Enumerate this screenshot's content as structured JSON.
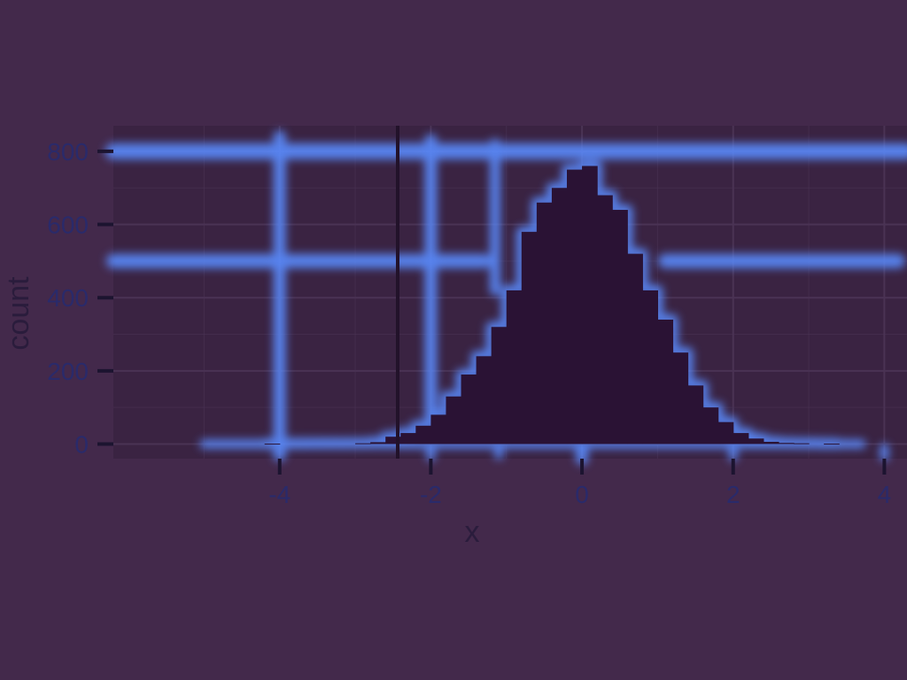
{
  "chart_data": {
    "type": "bar",
    "xlabel": "x",
    "ylabel": "count",
    "xlim": [
      -6.2,
      4.3
    ],
    "ylim": [
      -40,
      870
    ],
    "x_ticks": [
      -4,
      -2,
      0,
      2,
      4
    ],
    "y_ticks": [
      0,
      200,
      400,
      600,
      800
    ],
    "x_tick_labels": [
      "-4",
      "-2",
      "0",
      "2",
      "4"
    ],
    "y_tick_labels": [
      "0",
      "200",
      "400",
      "600",
      "800"
    ],
    "grid": true,
    "bin_width": 0.2,
    "bins": [
      {
        "x0": -4.2,
        "count": 1
      },
      {
        "x0": -3.0,
        "count": 2
      },
      {
        "x0": -2.8,
        "count": 5
      },
      {
        "x0": -2.6,
        "count": 20
      },
      {
        "x0": -2.4,
        "count": 30
      },
      {
        "x0": -2.2,
        "count": 50
      },
      {
        "x0": -2.0,
        "count": 80
      },
      {
        "x0": -1.8,
        "count": 130
      },
      {
        "x0": -1.6,
        "count": 190
      },
      {
        "x0": -1.4,
        "count": 240
      },
      {
        "x0": -1.2,
        "count": 320
      },
      {
        "x0": -1.0,
        "count": 420
      },
      {
        "x0": -0.8,
        "count": 580
      },
      {
        "x0": -0.6,
        "count": 660
      },
      {
        "x0": -0.4,
        "count": 700
      },
      {
        "x0": -0.2,
        "count": 750
      },
      {
        "x0": 0.0,
        "count": 760
      },
      {
        "x0": 0.2,
        "count": 680
      },
      {
        "x0": 0.4,
        "count": 640
      },
      {
        "x0": 0.6,
        "count": 520
      },
      {
        "x0": 0.8,
        "count": 420
      },
      {
        "x0": 1.0,
        "count": 340
      },
      {
        "x0": 1.2,
        "count": 250
      },
      {
        "x0": 1.4,
        "count": 160
      },
      {
        "x0": 1.6,
        "count": 100
      },
      {
        "x0": 1.8,
        "count": 60
      },
      {
        "x0": 2.0,
        "count": 30
      },
      {
        "x0": 2.2,
        "count": 15
      },
      {
        "x0": 2.4,
        "count": 6
      },
      {
        "x0": 2.6,
        "count": 3
      },
      {
        "x0": 2.8,
        "count": 2
      },
      {
        "x0": 3.2,
        "count": 1
      }
    ],
    "colors": {
      "background": "#43294b",
      "panel": "#3a2342",
      "gridline": "#4a3354",
      "bars": "#2a1234",
      "tick_text": "#2a2a6a",
      "axis_title": "#2a1c3c",
      "glow": "#5a8cff"
    }
  }
}
